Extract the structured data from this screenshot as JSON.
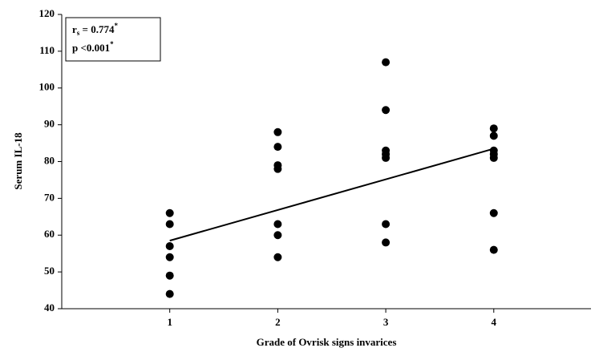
{
  "chart_data": {
    "type": "scatter",
    "x_label": "Grade of Ovrisk signs invarices",
    "y_label": "Serum IL-18",
    "x": [
      1,
      1,
      1,
      1,
      1,
      1,
      2,
      2,
      2,
      2,
      2,
      2,
      2,
      3,
      3,
      3,
      3,
      3,
      3,
      3,
      4,
      4,
      4,
      4,
      4,
      4,
      4
    ],
    "values": [
      66,
      63,
      57,
      54,
      49,
      44,
      88,
      84,
      79,
      78,
      63,
      60,
      54,
      107,
      94,
      83,
      82,
      81,
      63,
      58,
      89,
      87,
      83,
      82,
      81,
      66,
      56
    ],
    "color": "#000000",
    "trend_line": {
      "x": [
        1,
        4
      ],
      "y": [
        58.5,
        83.5
      ]
    },
    "annotations": [
      {
        "text": "r",
        "sub": "s",
        "rest": " = 0.774",
        "sup": "*"
      },
      {
        "text": "p <0.001",
        "sup": "*"
      }
    ],
    "xlim": [
      0,
      4.9
    ],
    "xticks": [
      1,
      2,
      3,
      4
    ],
    "ylim": [
      40,
      120
    ],
    "yticks": [
      40,
      50,
      60,
      70,
      80,
      90,
      100,
      110,
      120
    ]
  }
}
